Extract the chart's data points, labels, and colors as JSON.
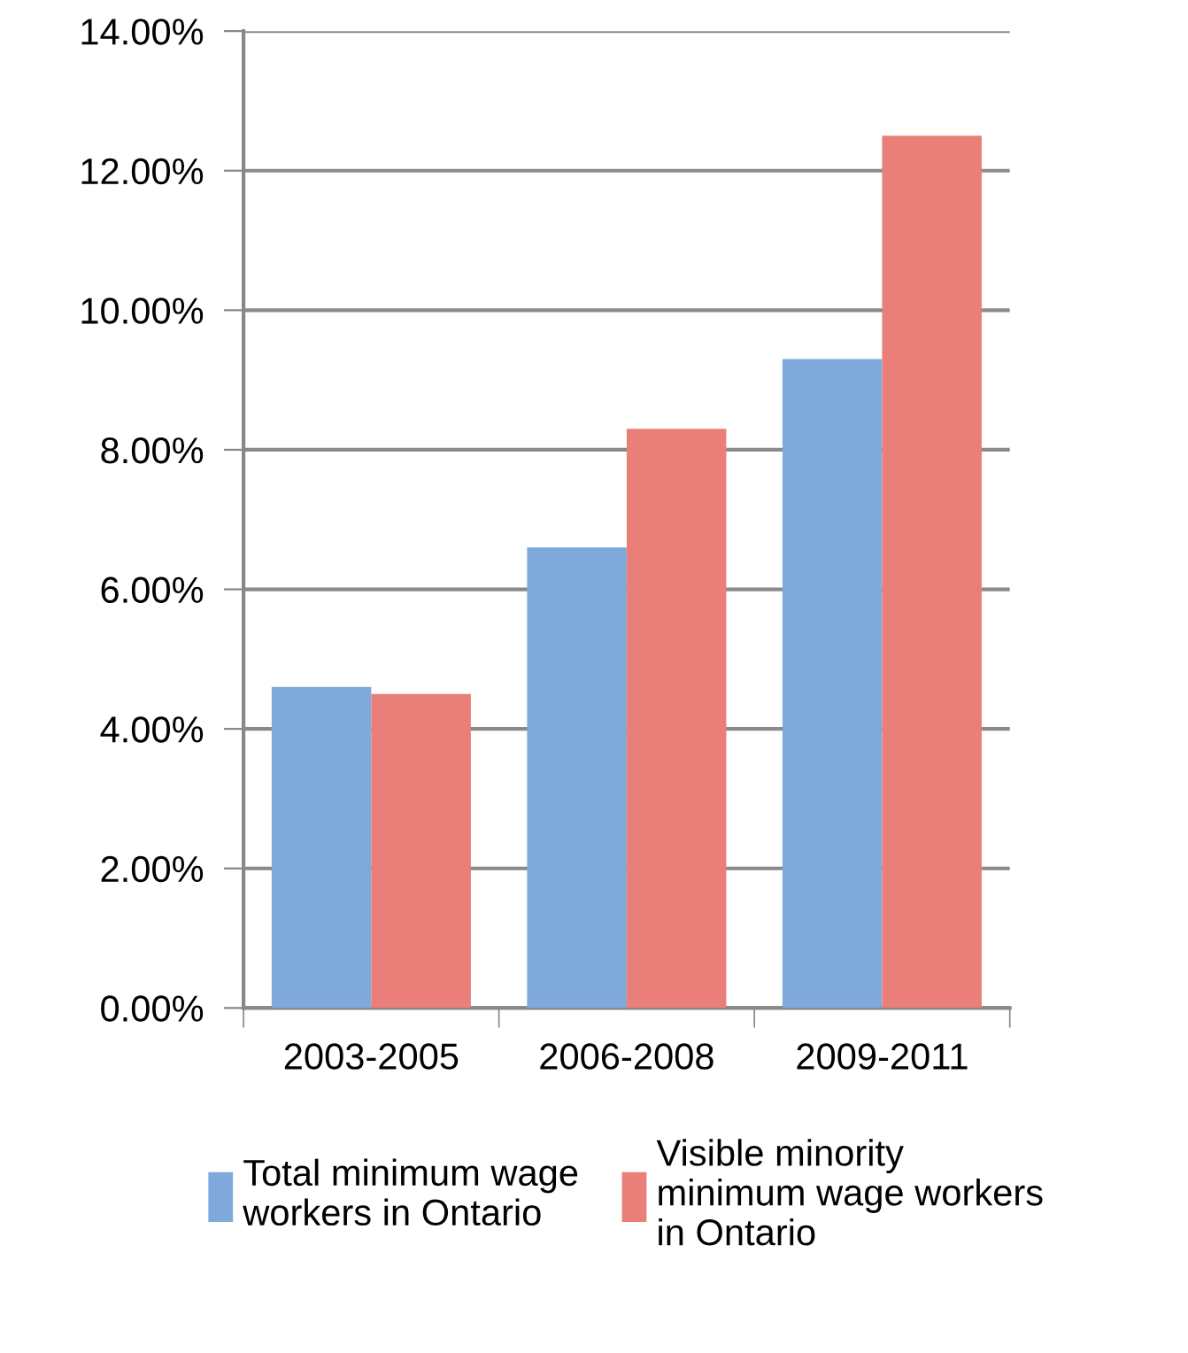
{
  "chart_data": {
    "type": "bar",
    "categories": [
      "2003-2005",
      "2006-2008",
      "2009-2011"
    ],
    "series": [
      {
        "name": "Total minimum wage workers in Ontario",
        "color": "#7fa9da",
        "values": [
          4.6,
          6.6,
          9.3
        ]
      },
      {
        "name": "Visible minority minimum wage workers in Ontario",
        "color": "#ea7f79",
        "values": [
          4.5,
          8.3,
          12.5
        ]
      }
    ],
    "ylim": [
      0,
      14
    ],
    "yticks": [
      {
        "value": 0,
        "label": "0.00%"
      },
      {
        "value": 2,
        "label": "2.00%"
      },
      {
        "value": 4,
        "label": "4.00%"
      },
      {
        "value": 6,
        "label": "6.00%"
      },
      {
        "value": 8,
        "label": "8.00%"
      },
      {
        "value": 10,
        "label": "10.00%"
      },
      {
        "value": 12,
        "label": "12.00%"
      },
      {
        "value": 14,
        "label": "14.00%"
      }
    ],
    "grid": "y",
    "legend": "bottom"
  }
}
